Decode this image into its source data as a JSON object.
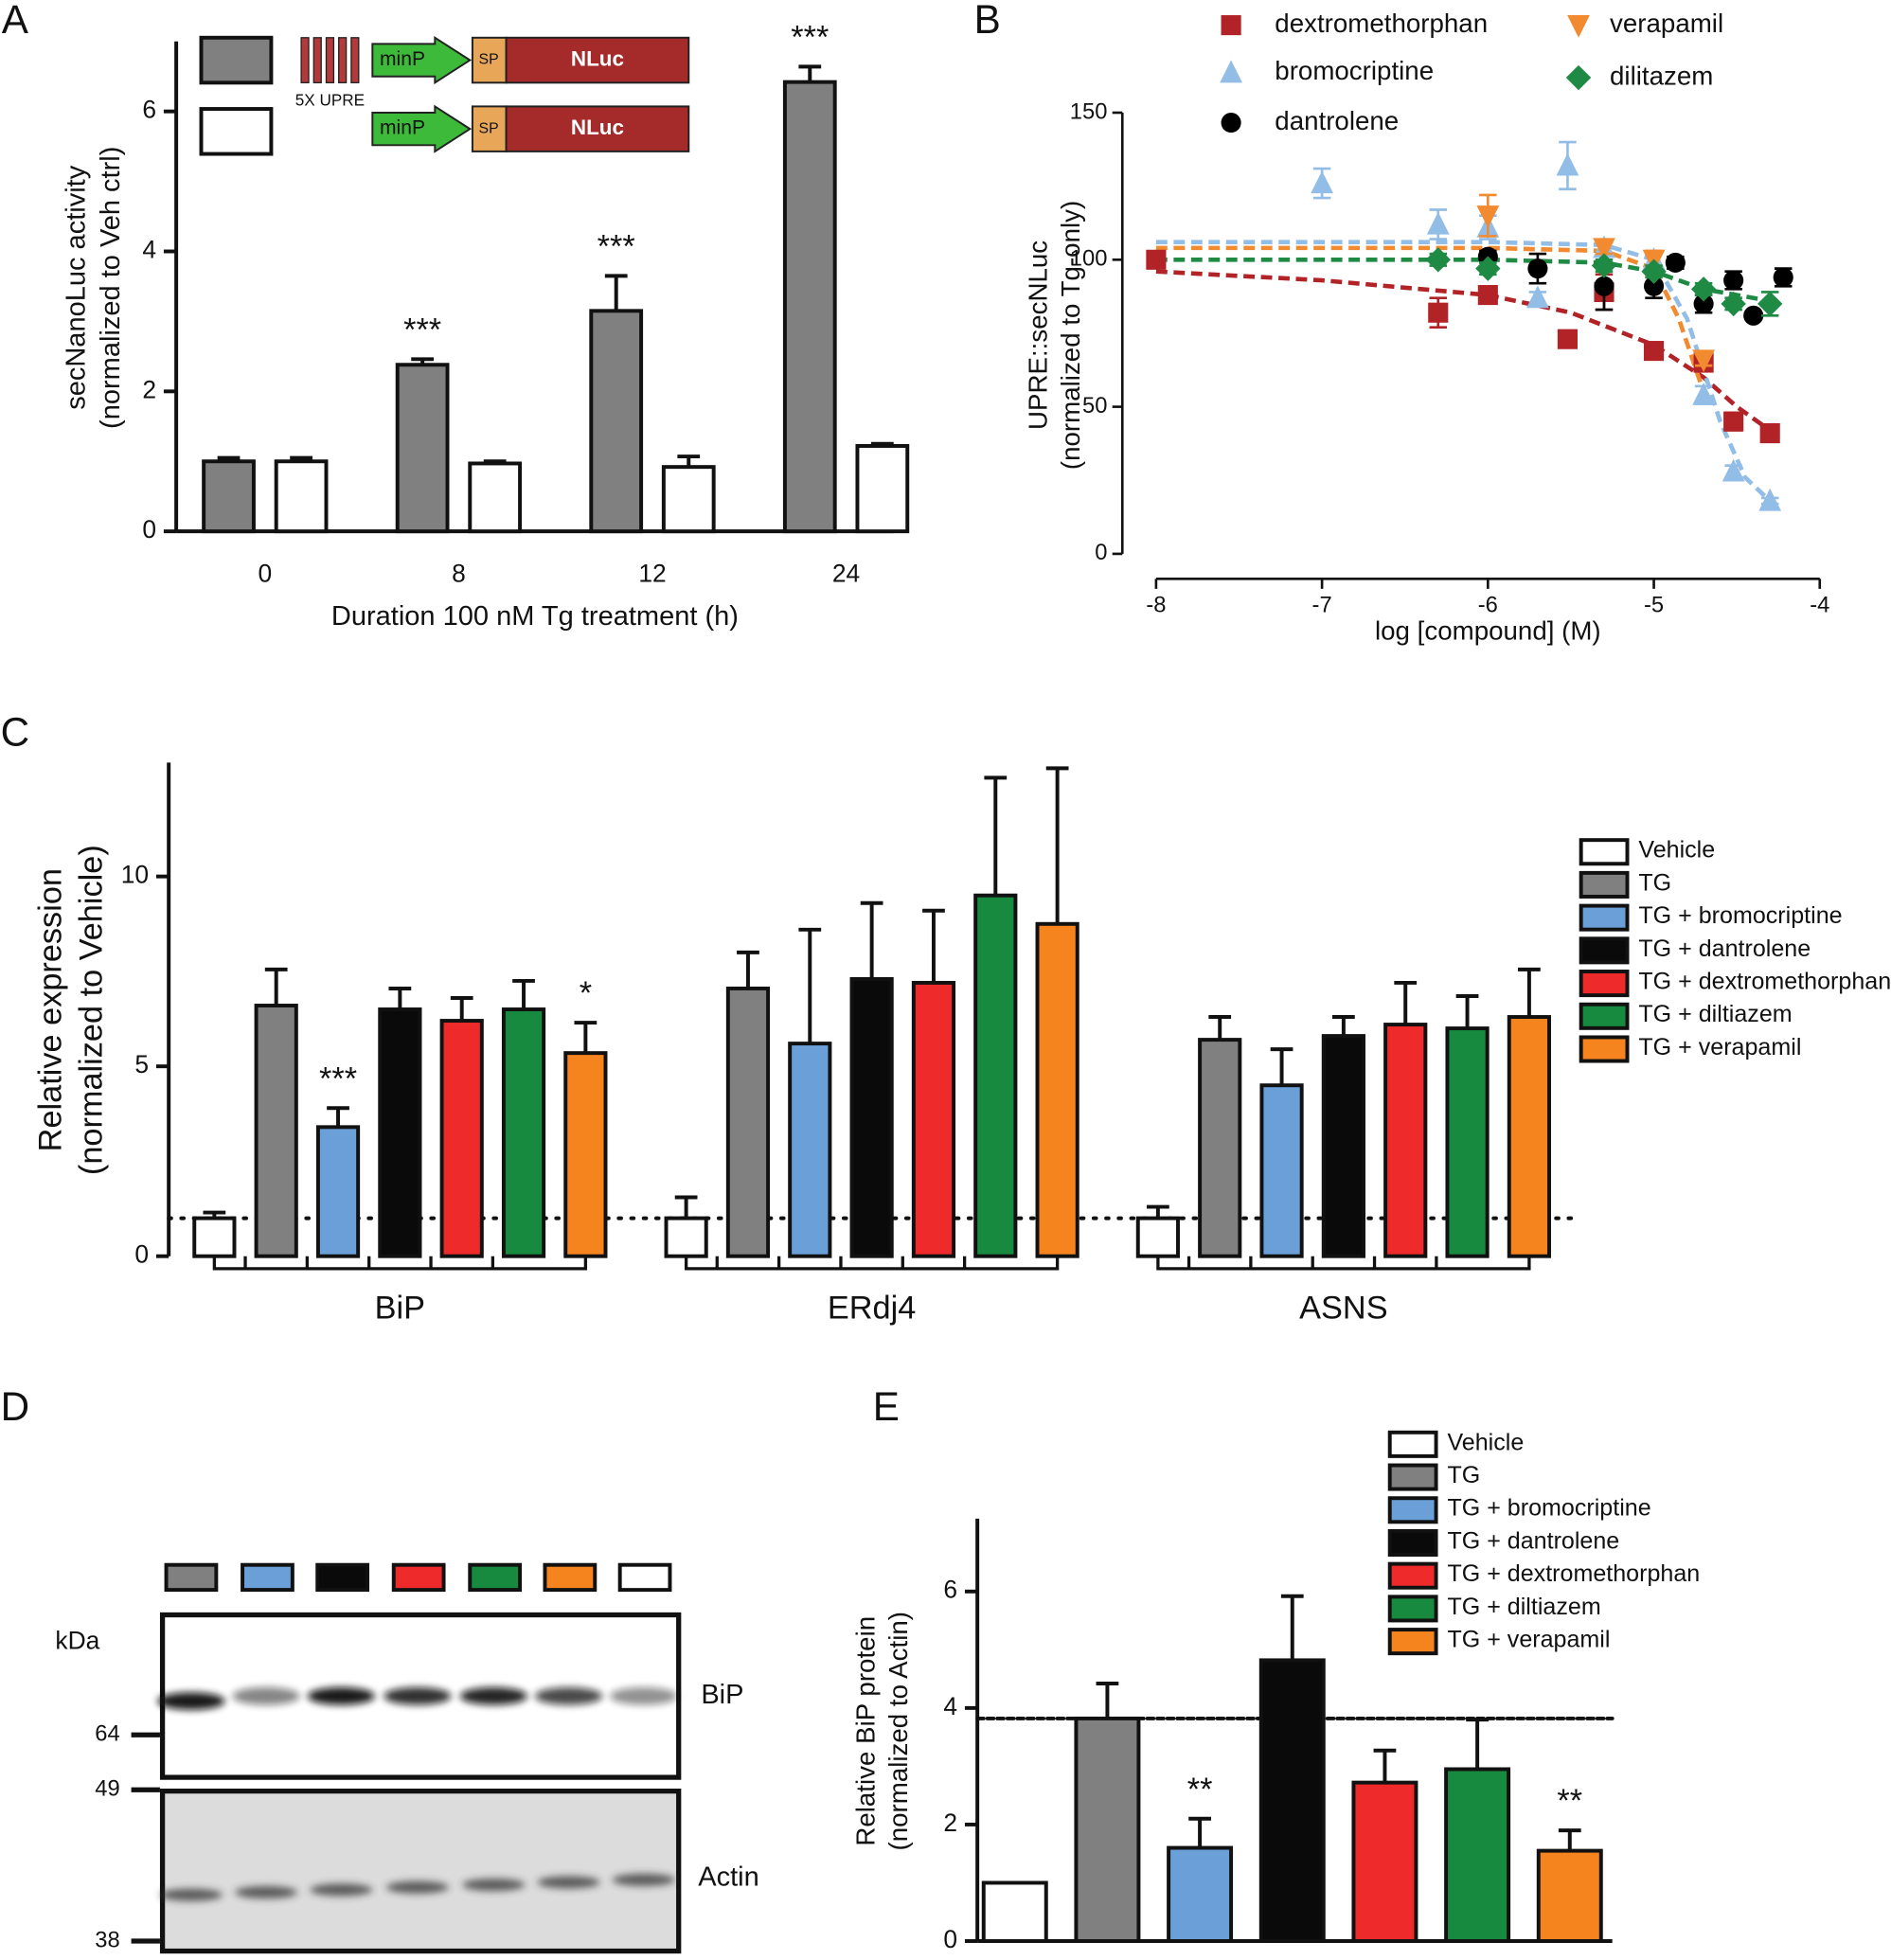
{
  "chart_data": [
    {
      "type": "bar",
      "panel": "A",
      "y_label": [
        "secNanoLuc activity",
        "(normalized to Veh ctrl)"
      ],
      "x_label": "Duration 100 nM Tg treatment (h)",
      "categories": [
        "0",
        "8",
        "12",
        "24"
      ],
      "series": [
        {
          "color": "#808080",
          "values": [
            1.0,
            2.38,
            3.15,
            6.42
          ],
          "errors": [
            0.05,
            0.08,
            0.5,
            0.22
          ],
          "annotations": [
            null,
            "***",
            "***",
            "***"
          ]
        },
        {
          "color": "#ffffff",
          "values": [
            1.0,
            0.97,
            0.92,
            1.22
          ],
          "errors": [
            0.05,
            0.03,
            0.15,
            0.03
          ]
        }
      ],
      "legend_diagram": {
        "repeat": "5X UPRE",
        "promoter": "minP",
        "signal": "SP",
        "reporter": "NLuc"
      },
      "ylim": [
        0,
        7
      ],
      "yticks": [
        0,
        2,
        4,
        6
      ]
    },
    {
      "type": "scatter",
      "panel": "B",
      "y_label": [
        "UPRE::secNLuc",
        "(normalized to Tg-only)"
      ],
      "x_label": "log [compound] (M)",
      "legend": "top",
      "series": [
        {
          "name": "dextromethorphan",
          "color": "#b22327",
          "marker": "square",
          "x": [
            -8,
            -6.3,
            -6,
            -5.52,
            -5.3,
            -5,
            -4.7,
            -4.52,
            -4.3
          ],
          "values": [
            100,
            82,
            88,
            73,
            89,
            69,
            65,
            45,
            41
          ],
          "errors": [
            2,
            5,
            2,
            1,
            6,
            1,
            2,
            3,
            2
          ],
          "fit": {
            "x": [
              -8,
              -7,
              -6,
              -5.5,
              -5,
              -4.7,
              -4.5,
              -4.3
            ],
            "values": [
              96,
              93,
              88,
              82,
              71,
              60,
              50,
              42
            ]
          }
        },
        {
          "name": "bromocriptine",
          "color": "#92bde6",
          "marker": "triangle",
          "x": [
            -7,
            -6.3,
            -6,
            -5.7,
            -5.52,
            -5.3,
            -5,
            -4.7,
            -4.52,
            -4.3
          ],
          "values": [
            126,
            112,
            111,
            87,
            132,
            104,
            100,
            54,
            28,
            18
          ],
          "errors": [
            5,
            5,
            4,
            2,
            8,
            2,
            3,
            3,
            2,
            1
          ],
          "fit": {
            "x": [
              -8,
              -6,
              -5.3,
              -5,
              -4.8,
              -4.6,
              -4.45,
              -4.3
            ],
            "values": [
              106,
              106,
              105,
              100,
              80,
              45,
              26,
              18
            ]
          }
        },
        {
          "name": "dantrolene",
          "color": "#000000",
          "marker": "circle",
          "x": [
            -6,
            -5.7,
            -5.3,
            -5,
            -4.87,
            -4.7,
            -4.52,
            -4.4,
            -4.22
          ],
          "values": [
            101,
            97,
            91,
            91,
            99,
            85,
            93,
            81,
            94
          ],
          "errors": [
            2,
            5,
            8,
            4,
            2,
            3,
            3,
            1,
            3
          ]
        },
        {
          "name": "verapamil",
          "color": "#f28a30",
          "marker": "triangle-down",
          "x": [
            -6,
            -5.3,
            -5,
            -4.7
          ],
          "values": [
            115,
            104,
            100,
            66
          ],
          "errors": [
            7,
            2,
            3,
            2
          ],
          "fit": {
            "x": [
              -8,
              -6,
              -5.3,
              -5,
              -4.85,
              -4.7
            ],
            "values": [
              104,
              104,
              103,
              97,
              80,
              55
            ]
          }
        },
        {
          "name": "dilitazem",
          "color": "#1f8a44",
          "marker": "diamond",
          "x": [
            -6.3,
            -6,
            -5.3,
            -5,
            -4.7,
            -4.52,
            -4.3
          ],
          "values": [
            100,
            97,
            98,
            96,
            90,
            85,
            85
          ],
          "errors": [
            2,
            2,
            2,
            2,
            2,
            2,
            4
          ],
          "fit": {
            "x": [
              -8,
              -6,
              -5.3,
              -5,
              -4.7,
              -4.3
            ],
            "values": [
              100,
              100,
              99,
              96,
              90,
              86
            ]
          }
        }
      ],
      "xlim": [
        -8,
        -4
      ],
      "xticks": [
        -8,
        -7,
        -6,
        -5,
        -4
      ],
      "ylim": [
        0,
        150
      ],
      "yticks": [
        0,
        50,
        100,
        150
      ]
    },
    {
      "type": "bar",
      "panel": "C",
      "y_label": [
        "Relative expression",
        "(normalized to Vehicle)"
      ],
      "categories": [
        "BiP",
        "ERdj4",
        "ASNS"
      ],
      "legend": "right",
      "ref_line": 1,
      "series": [
        {
          "name": "Vehicle",
          "color": "#ffffff",
          "values": [
            1.0,
            1.0,
            1.0
          ],
          "errors": [
            0.15,
            0.55,
            0.3
          ]
        },
        {
          "name": "TG",
          "color": "#808080",
          "values": [
            6.6,
            7.05,
            5.7
          ],
          "errors": [
            0.95,
            0.95,
            0.6
          ]
        },
        {
          "name": "TG + bromocriptine",
          "color": "#6a9fd8",
          "values": [
            3.4,
            5.6,
            4.5
          ],
          "errors": [
            0.5,
            3.0,
            0.95
          ],
          "annotations": [
            "***",
            null,
            null
          ]
        },
        {
          "name": "TG + dantrolene",
          "color": "#0a0a0a",
          "values": [
            6.5,
            7.3,
            5.8
          ],
          "errors": [
            0.55,
            2.0,
            0.5
          ]
        },
        {
          "name": "TG + dextromethorphan",
          "color": "#ee2a2a",
          "values": [
            6.2,
            7.2,
            6.1
          ],
          "errors": [
            0.6,
            1.9,
            1.1
          ]
        },
        {
          "name": "TG + diltiazem",
          "color": "#178a3f",
          "values": [
            6.5,
            9.5,
            6.0
          ],
          "errors": [
            0.75,
            3.1,
            0.85
          ]
        },
        {
          "name": "TG + verapamil",
          "color": "#f5841f",
          "values": [
            5.35,
            8.75,
            6.3
          ],
          "errors": [
            0.8,
            4.1,
            1.25
          ],
          "annotations": [
            "*",
            null,
            null
          ]
        }
      ],
      "ylim": [
        0,
        13
      ],
      "yticks": [
        0,
        5,
        10
      ]
    },
    {
      "type": "bar",
      "panel": "E",
      "y_label": [
        "Relative BiP protein",
        "(normalized to Actin)"
      ],
      "categories": [
        null
      ],
      "legend": "top-right",
      "ref_line": 3.82,
      "series": [
        {
          "name": "Vehicle",
          "color": "#ffffff",
          "values": [
            1.0
          ],
          "errors": [
            0
          ]
        },
        {
          "name": "TG",
          "color": "#808080",
          "values": [
            3.82
          ],
          "errors": [
            0.6
          ]
        },
        {
          "name": "TG + bromocriptine",
          "color": "#6a9fd8",
          "values": [
            1.6
          ],
          "errors": [
            0.5
          ],
          "annotations": [
            "**"
          ]
        },
        {
          "name": "TG + dantrolene",
          "color": "#0a0a0a",
          "values": [
            4.82
          ],
          "errors": [
            1.1
          ]
        },
        {
          "name": "TG + dextromethorphan",
          "color": "#ee2a2a",
          "values": [
            2.72
          ],
          "errors": [
            0.55
          ]
        },
        {
          "name": "TG + diltiazem",
          "color": "#178a3f",
          "values": [
            2.95
          ],
          "errors": [
            0.85
          ]
        },
        {
          "name": "TG + verapamil",
          "color": "#f5841f",
          "values": [
            1.55
          ],
          "errors": [
            0.35
          ],
          "annotations": [
            "**"
          ]
        }
      ],
      "ylim": [
        0,
        7.25
      ],
      "yticks": [
        0,
        2,
        4,
        6
      ]
    }
  ],
  "blot": {
    "panel": "D",
    "unit": "kDa",
    "markers": [
      64,
      49,
      38
    ],
    "bands": [
      "BiP",
      "Actin"
    ]
  }
}
